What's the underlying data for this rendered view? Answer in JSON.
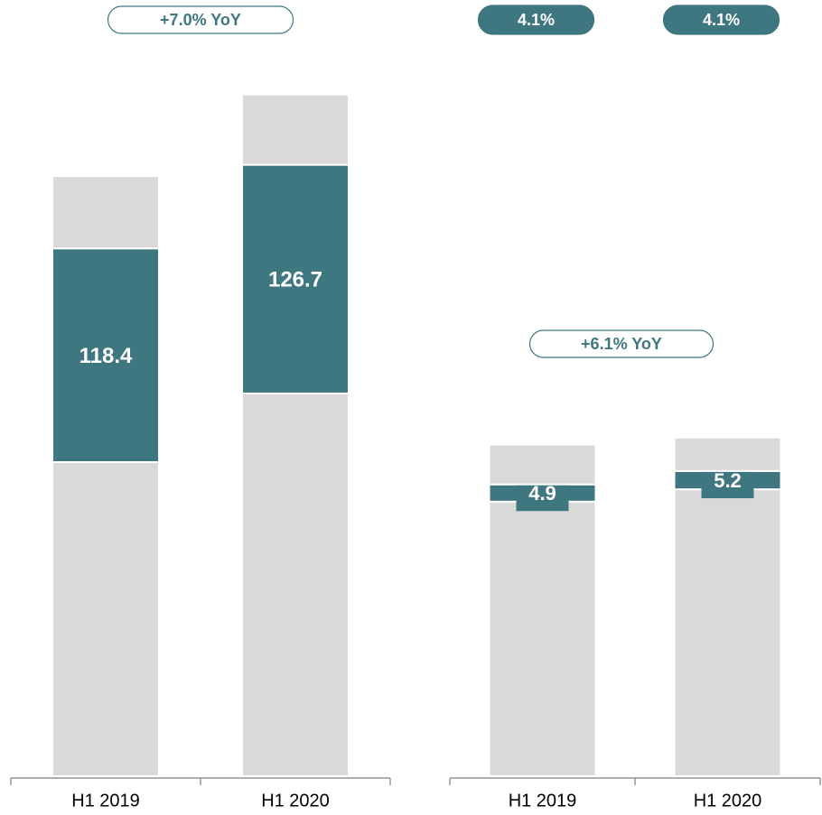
{
  "chart_data": [
    {
      "type": "stacked_bar",
      "categories": [
        "H1 2019",
        "H1 2020"
      ],
      "series": [
        {
          "color": "#d9d9d9",
          "values": [
            174,
            212
          ]
        },
        {
          "color": "#3f7780",
          "values": [
            118.4,
            126.7
          ],
          "show_labels": true
        },
        {
          "color": "#d9d9d9",
          "values": [
            40,
            39
          ]
        }
      ],
      "ylim": [
        0,
        400
      ],
      "annotations": [
        "+7.0% YoY"
      ]
    },
    {
      "type": "stacked_bar",
      "categories": [
        "H1 2019",
        "H1 2020"
      ],
      "series": [
        {
          "color": "#d9d9d9",
          "values": [
            78,
            81.5
          ]
        },
        {
          "color": "#3f7780",
          "values": [
            4.9,
            5.2
          ],
          "show_labels": true
        },
        {
          "color": "#d9d9d9",
          "values": [
            11.3,
            9.5
          ]
        }
      ],
      "ylim": [
        0,
        200
      ],
      "annotations": [
        "+6.1% YoY"
      ],
      "top_labels": [
        "4.1%",
        "4.1%"
      ]
    }
  ]
}
